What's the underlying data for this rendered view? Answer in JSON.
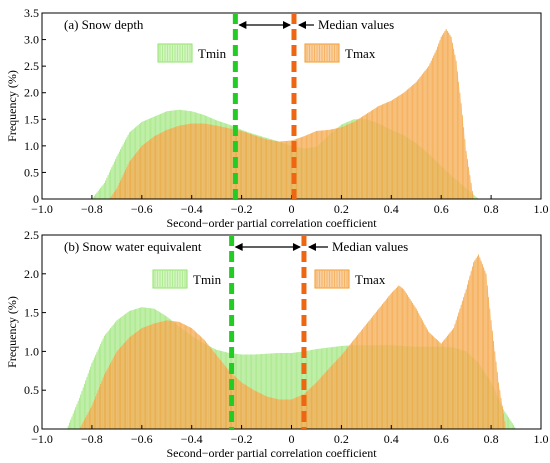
{
  "colors": {
    "tmin": "#8fe26a",
    "tmin_fill": "#c8f2b0",
    "tmax": "#f39a2a",
    "tmax_fill": "#f7c48a",
    "median_tmin": "#22cc22",
    "median_tmax": "#ee6611"
  },
  "chart_data": [
    {
      "type": "histogram",
      "panel_label": "(a) Snow depth",
      "xlabel": "Second−order partial correlation coefficient",
      "ylabel": "Frequency (%)",
      "xlim": [
        -1.0,
        1.0
      ],
      "ylim": [
        0,
        3.5
      ],
      "xticks": [
        "−1.0",
        "−0.8",
        "−0.6",
        "−0.4",
        "−0.2",
        "0",
        "0.2",
        "0.4",
        "0.6",
        "0.8",
        "1.0"
      ],
      "yticks": [
        "0",
        "0.5",
        "1.0",
        "1.5",
        "2.0",
        "2.5",
        "3.0",
        "3.5"
      ],
      "median_label": "Median values",
      "medians": {
        "Tmin": -0.225,
        "Tmax": 0.01
      },
      "series": [
        {
          "name": "Tmin",
          "x": [
            -0.8,
            -0.75,
            -0.7,
            -0.65,
            -0.6,
            -0.55,
            -0.5,
            -0.45,
            -0.4,
            -0.35,
            -0.3,
            -0.25,
            -0.2,
            -0.15,
            -0.1,
            -0.05,
            0.0,
            0.05,
            0.1,
            0.15,
            0.2,
            0.25,
            0.3,
            0.35,
            0.4,
            0.45,
            0.5,
            0.55,
            0.6,
            0.65,
            0.7,
            0.75
          ],
          "values": [
            0.0,
            0.3,
            0.8,
            1.25,
            1.45,
            1.55,
            1.65,
            1.68,
            1.65,
            1.58,
            1.48,
            1.4,
            1.3,
            1.22,
            1.15,
            1.08,
            1.0,
            0.95,
            0.98,
            1.2,
            1.4,
            1.5,
            1.5,
            1.42,
            1.3,
            1.2,
            1.05,
            0.85,
            0.62,
            0.4,
            0.2,
            0.0
          ]
        },
        {
          "name": "Tmax",
          "x": [
            -0.73,
            -0.7,
            -0.65,
            -0.6,
            -0.55,
            -0.5,
            -0.45,
            -0.4,
            -0.35,
            -0.3,
            -0.25,
            -0.2,
            -0.15,
            -0.1,
            -0.05,
            0.0,
            0.05,
            0.1,
            0.15,
            0.2,
            0.25,
            0.3,
            0.35,
            0.4,
            0.45,
            0.5,
            0.55,
            0.58,
            0.6,
            0.62,
            0.64,
            0.66,
            0.68,
            0.7,
            0.73
          ],
          "values": [
            0.0,
            0.2,
            0.7,
            1.0,
            1.18,
            1.3,
            1.38,
            1.42,
            1.42,
            1.38,
            1.33,
            1.28,
            1.2,
            1.12,
            1.08,
            1.1,
            1.18,
            1.28,
            1.3,
            1.35,
            1.45,
            1.6,
            1.75,
            1.85,
            2.0,
            2.2,
            2.5,
            2.8,
            3.05,
            3.2,
            3.05,
            2.6,
            1.8,
            0.9,
            0.0
          ]
        }
      ]
    },
    {
      "type": "histogram",
      "panel_label": "(b) Snow water equivalent",
      "xlabel": "Second−order partial correlation coefficient",
      "ylabel": "Frequency (%)",
      "xlim": [
        -1.0,
        1.0
      ],
      "ylim": [
        0,
        2.5
      ],
      "xticks": [
        "−1.0",
        "−0.8",
        "−0.6",
        "−0.4",
        "−0.2",
        "0",
        "0.2",
        "0.4",
        "0.6",
        "0.8",
        "1.0"
      ],
      "yticks": [
        "0",
        "0.5",
        "1.0",
        "1.5",
        "2.0",
        "2.5"
      ],
      "median_label": "Median values",
      "medians": {
        "Tmin": -0.24,
        "Tmax": 0.05
      },
      "series": [
        {
          "name": "Tmin",
          "x": [
            -0.9,
            -0.85,
            -0.8,
            -0.75,
            -0.7,
            -0.65,
            -0.6,
            -0.55,
            -0.5,
            -0.45,
            -0.4,
            -0.35,
            -0.3,
            -0.25,
            -0.2,
            -0.15,
            -0.1,
            -0.05,
            0.0,
            0.05,
            0.1,
            0.15,
            0.2,
            0.25,
            0.3,
            0.35,
            0.4,
            0.45,
            0.5,
            0.55,
            0.6,
            0.65,
            0.7,
            0.75,
            0.8,
            0.85,
            0.9
          ],
          "values": [
            0.0,
            0.4,
            0.85,
            1.2,
            1.4,
            1.52,
            1.57,
            1.55,
            1.45,
            1.32,
            1.2,
            1.1,
            1.02,
            0.98,
            0.96,
            0.96,
            0.97,
            0.98,
            0.98,
            1.0,
            1.03,
            1.05,
            1.07,
            1.08,
            1.08,
            1.08,
            1.08,
            1.07,
            1.06,
            1.06,
            1.06,
            1.05,
            1.0,
            0.85,
            0.6,
            0.25,
            0.0
          ]
        },
        {
          "name": "Tmax",
          "x": [
            -0.85,
            -0.8,
            -0.75,
            -0.7,
            -0.65,
            -0.6,
            -0.55,
            -0.5,
            -0.45,
            -0.4,
            -0.35,
            -0.3,
            -0.25,
            -0.2,
            -0.15,
            -0.1,
            -0.05,
            0.0,
            0.05,
            0.1,
            0.15,
            0.2,
            0.25,
            0.3,
            0.35,
            0.4,
            0.43,
            0.45,
            0.5,
            0.55,
            0.6,
            0.65,
            0.7,
            0.73,
            0.75,
            0.78,
            0.8,
            0.83,
            0.86
          ],
          "values": [
            0.0,
            0.3,
            0.7,
            1.0,
            1.18,
            1.3,
            1.36,
            1.4,
            1.38,
            1.3,
            1.15,
            0.95,
            0.75,
            0.6,
            0.5,
            0.42,
            0.38,
            0.38,
            0.45,
            0.6,
            0.78,
            0.95,
            1.15,
            1.35,
            1.55,
            1.75,
            1.85,
            1.8,
            1.55,
            1.25,
            1.1,
            1.3,
            1.8,
            2.15,
            2.25,
            2.0,
            1.4,
            0.6,
            0.0
          ]
        }
      ]
    }
  ]
}
